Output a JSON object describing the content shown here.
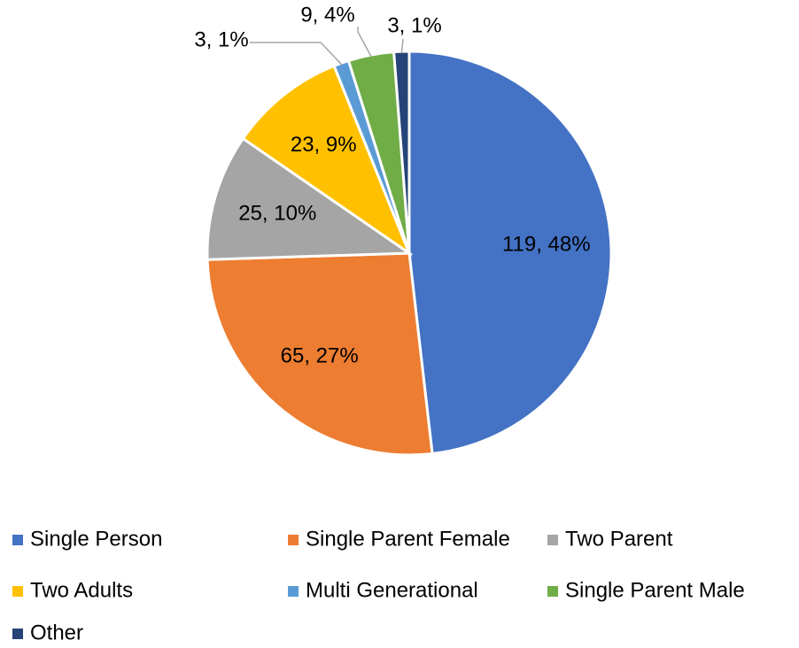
{
  "chart_data": {
    "type": "pie",
    "categories": [
      "Single Person",
      "Single Parent Female",
      "Two Parent",
      "Two Adults",
      "Multi Generational",
      "Single Parent Male",
      "Other"
    ],
    "values": [
      119,
      65,
      25,
      23,
      3,
      9,
      3
    ],
    "value_labels": [
      "119, 48%",
      "65, 27%",
      "25, 10%",
      "23, 9%",
      "3, 1%",
      "9, 4%",
      "3, 1%"
    ],
    "colors": [
      "#4472c4",
      "#ed7d31",
      "#a5a5a5",
      "#ffc000",
      "#5b9bd5",
      "#70ad47",
      "#264478"
    ],
    "legend": "bottom"
  }
}
